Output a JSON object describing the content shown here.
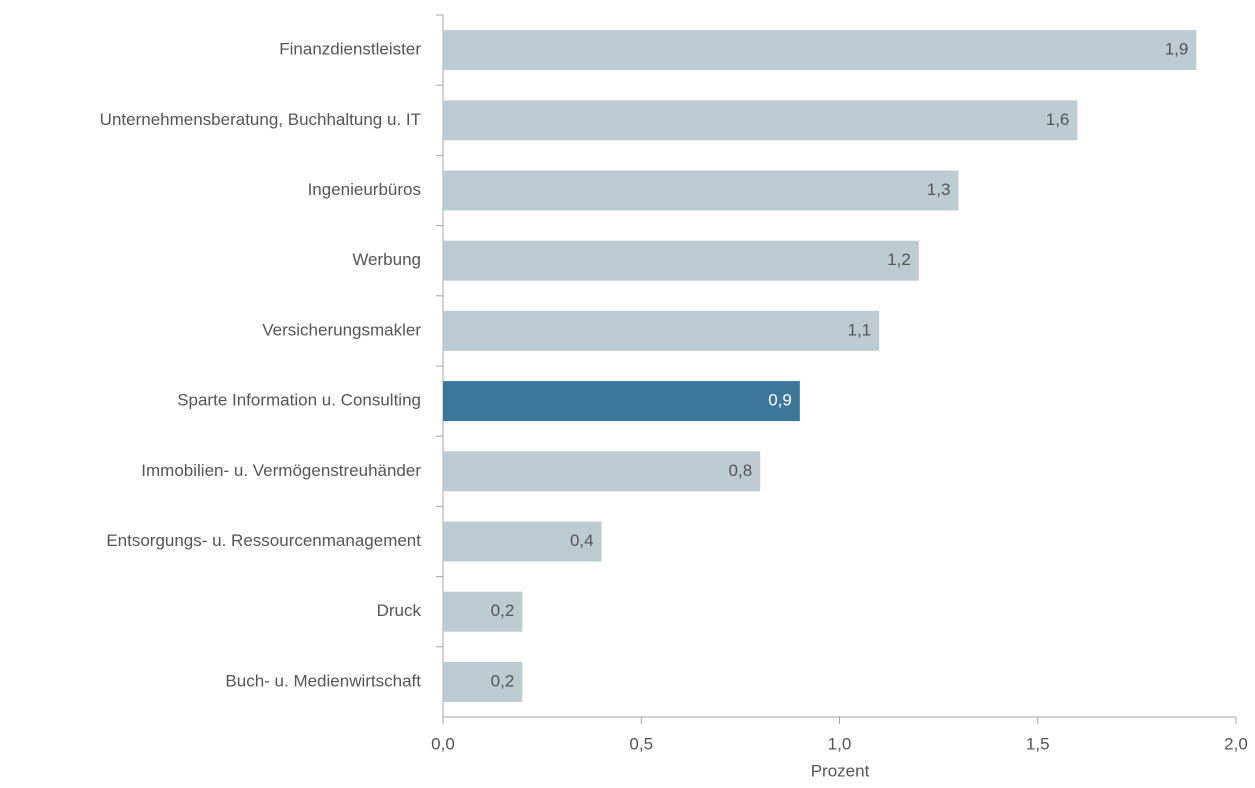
{
  "chart_data": {
    "type": "hbar",
    "x_label": "Prozent",
    "categories": [
      "Finanzdienstleister",
      "Unternehmensberatung, Buchhaltung u. IT",
      "Ingenieurbüros",
      "Werbung",
      "Versicherungsmakler",
      "Sparte Information u. Consulting",
      "Immobilien- u. Vermögenstreuhänder",
      "Entsorgungs- u. Ressourcenmanagement",
      "Druck",
      "Buch- u. Medienwirtschaft"
    ],
    "values": [
      1.9,
      1.6,
      1.3,
      1.2,
      1.1,
      0.9,
      0.8,
      0.4,
      0.2,
      0.2
    ],
    "value_labels": [
      "1,9",
      "1,6",
      "1,3",
      "1,2",
      "1,1",
      "0,9",
      "0,8",
      "0,4",
      "0,2",
      "0,2"
    ],
    "colors": [
      "#bdccd2",
      "#bdccd2",
      "#bdccd2",
      "#bdccd2",
      "#bdccd2",
      "#3b7799",
      "#bdccd2",
      "#bdccd2",
      "#bdccd2",
      "#bdccd2"
    ],
    "xlim": [
      0,
      2
    ],
    "xticks": [
      {
        "value": 0,
        "label": "0,0"
      },
      {
        "value": 0.5,
        "label": "0,5"
      },
      {
        "value": 1,
        "label": "1,0"
      },
      {
        "value": 1.5,
        "label": "1,5"
      },
      {
        "value": 2,
        "label": "2,0"
      }
    ]
  }
}
